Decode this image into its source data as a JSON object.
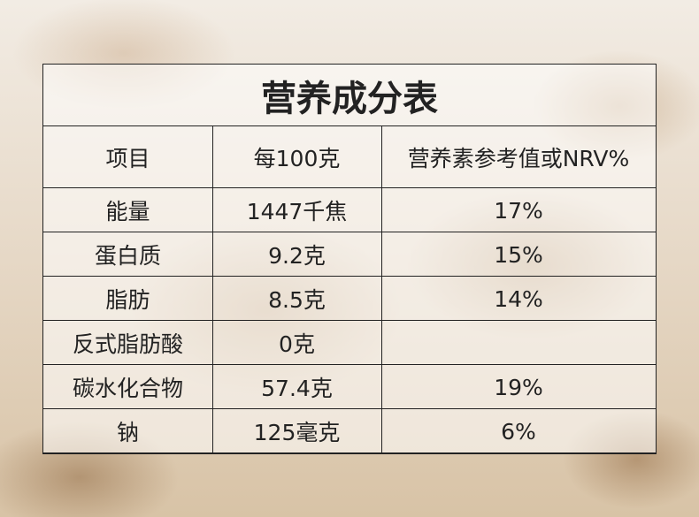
{
  "table": {
    "title": "营养成分表",
    "header": [
      "项目",
      "每100克",
      "营养素参考值或NRV%"
    ],
    "rows": [
      [
        "能量",
        "1447千焦",
        "17%"
      ],
      [
        "蛋白质",
        "9.2克",
        "15%"
      ],
      [
        "脂肪",
        "8.5克",
        "14%"
      ],
      [
        "反式脂肪酸",
        "0克"
      ],
      [
        "碳水化合物",
        "57.4克",
        "19%"
      ],
      [
        "钠",
        "125毫克",
        "6%"
      ]
    ]
  }
}
